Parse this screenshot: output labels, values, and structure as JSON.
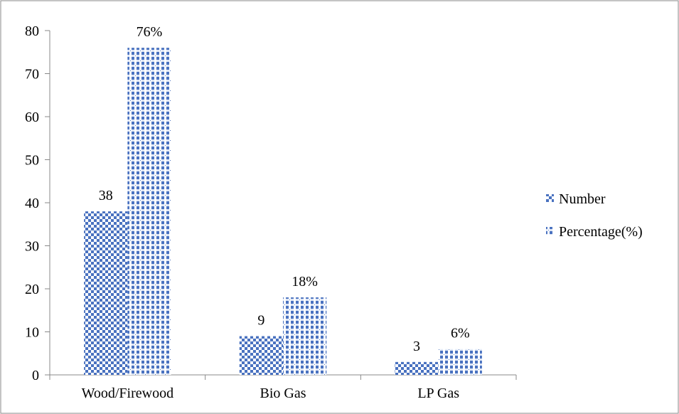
{
  "chart_data": {
    "type": "bar",
    "categories": [
      "Wood/Firewood",
      "Bio Gas",
      "LP Gas"
    ],
    "series": [
      {
        "name": "Number",
        "values": [
          38,
          9,
          3
        ],
        "data_labels": [
          "38",
          "9",
          "3"
        ],
        "pattern": "checker",
        "color": "#4a72c0"
      },
      {
        "name": "Percentage(%)",
        "values": [
          76,
          18,
          6
        ],
        "data_labels": [
          "76%",
          "18%",
          "6%"
        ],
        "pattern": "grid-dots",
        "color": "#4a72c0"
      }
    ],
    "y_ticks": [
      "0",
      "10",
      "20",
      "30",
      "40",
      "50",
      "60",
      "70",
      "80"
    ],
    "ylim": [
      0,
      80
    ],
    "title": "",
    "xlabel": "",
    "ylabel": "",
    "grid": false,
    "legend_position": "right",
    "colors": {
      "bar": "#4a72c0",
      "bar_light": "#ffffff",
      "axis": "#888888",
      "frame": "#888888"
    }
  }
}
